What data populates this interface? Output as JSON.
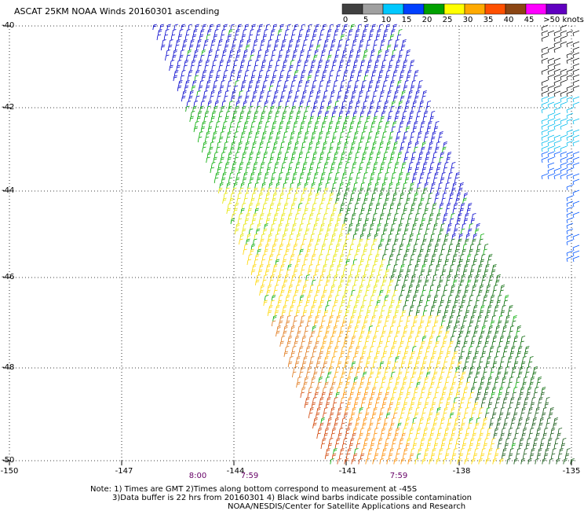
{
  "title": "ASCAT 25KM NOAA Winds 20160301 ascending",
  "colorbar": {
    "labels": [
      "0",
      "5",
      "10",
      "15",
      "20",
      "25",
      "30",
      "35",
      "40",
      "45",
      ">50 knots"
    ],
    "colors": [
      "#404040",
      "#a0a0a0",
      "#00c8ff",
      "#0040ff",
      "#00a000",
      "#ffff00",
      "#ffaa00",
      "#ff5000",
      "#8b4513",
      "#ff00ff",
      "#6000c0"
    ]
  },
  "axes": {
    "lat_labels": [
      "-40",
      "-42",
      "-44",
      "-46",
      "-48",
      "-50"
    ],
    "lon_labels": [
      "-150",
      "-147",
      "-144",
      "-141",
      "-138",
      "-135"
    ]
  },
  "times": [
    {
      "label": "8:00"
    },
    {
      "label": "7:59"
    },
    {
      "label": "7:59"
    }
  ],
  "notes": {
    "line1": "Note: 1) Times are GMT 2)Times along bottom correspond to measurement at -45S",
    "line2": "3)Data buffer is 22 hrs from 20160301 4) Black wind barbs indicate possible contamination",
    "line3": "NOAA/NESDIS/Center for Satellite Applications and Research"
  }
}
